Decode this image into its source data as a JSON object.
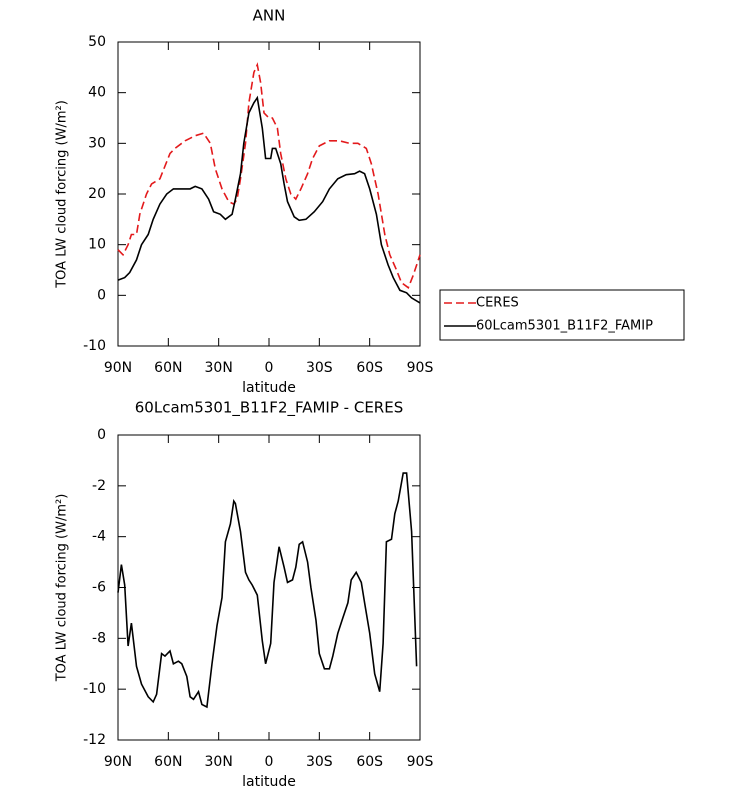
{
  "chart_data": [
    {
      "type": "line",
      "title": "ANN",
      "xlabel": "latitude",
      "ylabel": "TOA LW cloud forcing (W/m²)",
      "xlim": [
        90,
        -90
      ],
      "ylim": [
        -10,
        50
      ],
      "xticks": [
        {
          "value": 90,
          "label": "90N"
        },
        {
          "value": 60,
          "label": "60N"
        },
        {
          "value": 30,
          "label": "30N"
        },
        0,
        {
          "value": -30,
          "label": "30S"
        },
        {
          "value": -60,
          "label": "60S"
        },
        {
          "value": -90,
          "label": "90S"
        }
      ],
      "yticks": [
        -10,
        0,
        10,
        20,
        30,
        40,
        50
      ],
      "legend": "right",
      "series": [
        {
          "name": "CERES",
          "color": "#e31a1c",
          "line_style": "dashed",
          "x": [
            90,
            87,
            84,
            82,
            79,
            77,
            73,
            70,
            65,
            59,
            56,
            50,
            44,
            39,
            35,
            32,
            28,
            24,
            21,
            19,
            17,
            14,
            12,
            9,
            7,
            5,
            3,
            0,
            -2,
            -5,
            -7,
            -10,
            -13,
            -16,
            -19,
            -23,
            -26,
            -30,
            -36,
            -42,
            -48,
            -53,
            -58,
            -61,
            -65,
            -69,
            -72,
            -76,
            -79,
            -83,
            -86,
            -90
          ],
          "values": [
            9,
            8,
            10,
            12,
            12,
            16,
            20,
            22,
            23,
            28,
            29,
            30.5,
            31.5,
            32,
            30,
            25,
            21,
            18.5,
            18,
            19,
            23,
            30,
            38,
            44,
            45.5,
            42,
            36,
            35,
            35,
            33,
            28,
            23,
            20,
            19,
            21,
            24,
            27,
            29.5,
            30.5,
            30.5,
            30,
            30,
            29,
            26,
            20,
            12,
            8,
            5,
            2.5,
            1.5,
            4,
            8
          ]
        },
        {
          "name": "60Lcam5301_B11F2_FAMIP",
          "color": "#000000",
          "line_style": "solid",
          "x": [
            90,
            86,
            83,
            79,
            76,
            72,
            69,
            65,
            61,
            57,
            52,
            47,
            44,
            40,
            36,
            33,
            29,
            26,
            22,
            20,
            17,
            15,
            12,
            9,
            7,
            4,
            2,
            -1,
            -2,
            -4,
            -7,
            -9,
            -11,
            -15,
            -18,
            -22,
            -27,
            -32,
            -36,
            -41,
            -46,
            -51,
            -54,
            -57,
            -60,
            -64,
            -67,
            -71,
            -74,
            -78,
            -82,
            -85,
            -90
          ],
          "values": [
            3,
            3.5,
            4.5,
            7,
            10,
            12,
            15,
            18,
            20,
            21,
            21,
            21,
            21.5,
            21,
            19,
            16.5,
            16,
            15,
            16,
            19,
            24,
            30,
            36,
            38,
            39,
            33,
            27,
            27,
            29,
            29,
            26,
            22,
            18.5,
            15.5,
            14.8,
            15,
            16.5,
            18.5,
            21,
            23,
            23.8,
            24,
            24.5,
            24,
            21,
            16,
            10,
            6,
            3.5,
            1,
            0.5,
            -0.5,
            -1.5
          ]
        }
      ]
    },
    {
      "type": "line",
      "title": "60Lcam5301_B11F2_FAMIP - CERES",
      "xlabel": "latitude",
      "ylabel": "TOA LW cloud forcing (W/m²)",
      "xlim": [
        90,
        -90
      ],
      "ylim": [
        -12,
        0
      ],
      "xticks": [
        {
          "value": 90,
          "label": "90N"
        },
        {
          "value": 60,
          "label": "60N"
        },
        {
          "value": 30,
          "label": "30N"
        },
        0,
        {
          "value": -30,
          "label": "30S"
        },
        {
          "value": -60,
          "label": "60S"
        },
        {
          "value": -90,
          "label": "90S"
        }
      ],
      "yticks": [
        -12,
        -10,
        -8,
        -6,
        -4,
        -2,
        0
      ],
      "color": "#000000",
      "x": [
        90,
        88,
        86,
        84,
        82,
        79,
        76,
        72,
        69,
        67,
        64,
        62,
        59,
        57,
        54,
        52,
        49,
        47,
        45,
        42,
        40,
        37,
        34,
        31,
        28,
        26,
        23,
        21,
        20,
        17,
        14,
        12,
        10,
        7,
        4,
        2,
        -1,
        -3,
        -6,
        -9,
        -11,
        -14,
        -16,
        -18,
        -20,
        -23,
        -25,
        -28,
        -30,
        -33,
        -36,
        -38,
        -41,
        -44,
        -47,
        -49,
        -52,
        -55,
        -57,
        -60,
        -63,
        -66,
        -68,
        -70,
        -73,
        -75,
        -77,
        -80,
        -82,
        -85,
        -88
      ],
      "values": [
        -6.2,
        -5.1,
        -5.9,
        -8.3,
        -7.4,
        -9.1,
        -9.8,
        -10.3,
        -10.5,
        -10.2,
        -8.6,
        -8.7,
        -8.5,
        -9,
        -8.9,
        -9,
        -9.5,
        -10.3,
        -10.4,
        -10.1,
        -10.6,
        -10.7,
        -9,
        -7.5,
        -6.4,
        -4.2,
        -3.5,
        -2.6,
        -2.7,
        -3.8,
        -5.4,
        -5.7,
        -5.9,
        -6.3,
        -8.1,
        -9,
        -8.2,
        -5.8,
        -4.4,
        -5.2,
        -5.8,
        -5.7,
        -5.2,
        -4.3,
        -4.2,
        -5,
        -6,
        -7.3,
        -8.6,
        -9.2,
        -9.2,
        -8.7,
        -7.8,
        -7.2,
        -6.6,
        -5.7,
        -5.4,
        -5.8,
        -6.6,
        -7.8,
        -9.4,
        -10.1,
        -8.2,
        -4.2,
        -4.1,
        -3.1,
        -2.6,
        -1.5,
        -1.5,
        -3.8,
        -9.1
      ]
    }
  ]
}
